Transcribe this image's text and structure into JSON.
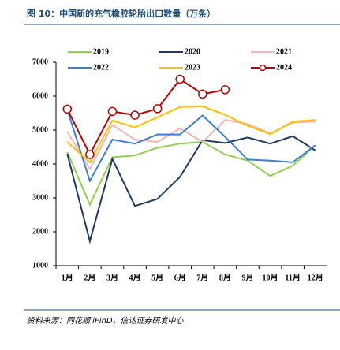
{
  "chart_data": {
    "type": "line",
    "title": "图 10：中国新的充气橡胶轮胎出口数量（万条）",
    "source": "资料来源：同花顺 iFinD，信达证券研发中心",
    "categories": [
      "1月",
      "2月",
      "3月",
      "4月",
      "5月",
      "6月",
      "7月",
      "8月",
      "9月",
      "10月",
      "11月",
      "12月"
    ],
    "series": [
      {
        "name": "2019",
        "color": "#92d050",
        "values": [
          4350,
          2800,
          4200,
          4250,
          4480,
          4600,
          4650,
          4280,
          4100,
          3650,
          3950,
          4550
        ]
      },
      {
        "name": "2020",
        "color": "#1f3864",
        "values": [
          4300,
          1720,
          4150,
          2760,
          2970,
          3620,
          4700,
          4620,
          4780,
          4600,
          4820,
          4400
        ]
      },
      {
        "name": "2021",
        "color": "#f4b6b6",
        "values": [
          4950,
          3850,
          5150,
          4720,
          4650,
          5050,
          4650,
          5300,
          5180,
          4900,
          5220,
          5250
        ]
      },
      {
        "name": "2022",
        "color": "#3a7fd5",
        "values": [
          5600,
          3500,
          4720,
          4600,
          4870,
          4870,
          5430,
          4800,
          4130,
          4100,
          4050,
          4550
        ]
      },
      {
        "name": "2023",
        "color": "#ffc000",
        "values": [
          4650,
          4050,
          5280,
          5080,
          5380,
          5680,
          5700,
          5450,
          5130,
          4880,
          5250,
          5300
        ]
      },
      {
        "name": "2024",
        "color": "#c00000",
        "marker": "circle",
        "values": [
          5620,
          4280,
          5550,
          5440,
          5630,
          6500,
          6060,
          6190,
          null,
          null,
          null,
          null
        ]
      }
    ],
    "ylim": [
      1000,
      7000
    ],
    "yticks": [
      1000,
      2000,
      3000,
      4000,
      5000,
      6000,
      7000
    ]
  }
}
